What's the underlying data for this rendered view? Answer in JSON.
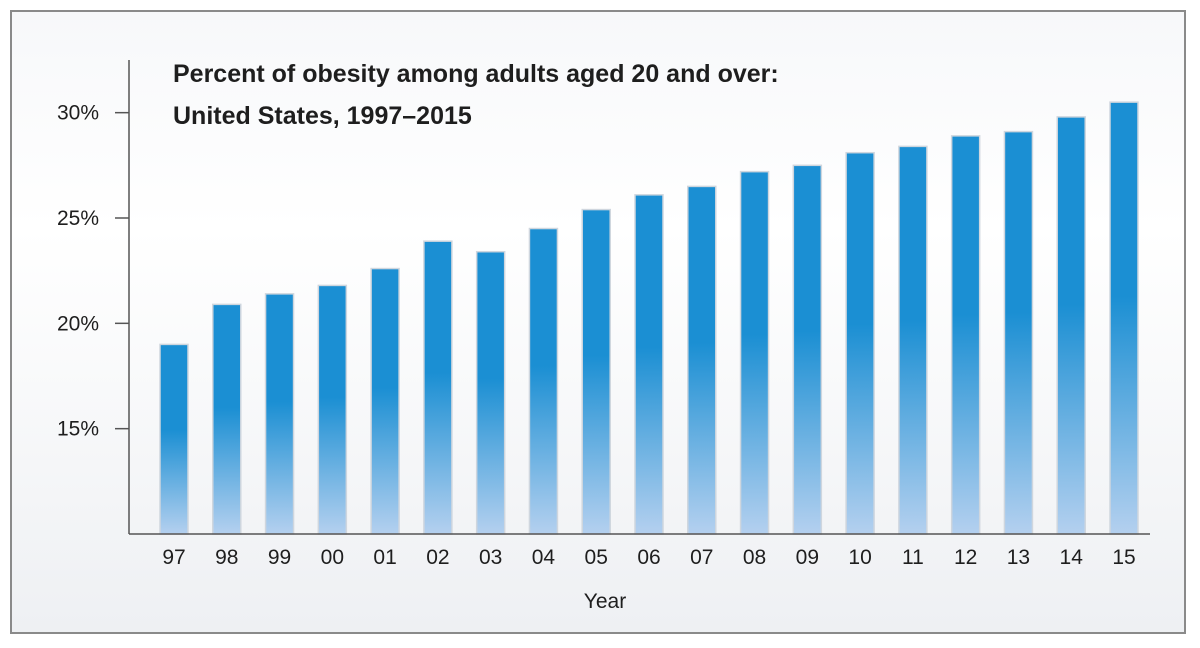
{
  "chart_data": {
    "type": "bar",
    "title_lines": [
      "Percent of obesity among adults aged 20 and over:",
      "United States, 1997–2015"
    ],
    "xlabel": "Year",
    "ylabel": "",
    "categories": [
      "97",
      "98",
      "99",
      "00",
      "01",
      "02",
      "03",
      "04",
      "05",
      "06",
      "07",
      "08",
      "09",
      "10",
      "11",
      "12",
      "13",
      "14",
      "15"
    ],
    "values": [
      19.0,
      20.9,
      21.4,
      21.8,
      22.6,
      23.9,
      23.4,
      24.5,
      25.4,
      26.1,
      26.5,
      27.2,
      27.5,
      28.1,
      28.4,
      28.9,
      29.1,
      29.8,
      30.5
    ],
    "ylim": [
      10,
      32.5
    ],
    "yticks": [
      15,
      20,
      25,
      30
    ],
    "ytick_labels": [
      "15%",
      "20%",
      "25%",
      "30%"
    ],
    "grid": false,
    "bar_color_top": "#1b8fd3",
    "bar_color_bottom": "#b4d0ef",
    "bar_outline": "#cfd6de"
  }
}
